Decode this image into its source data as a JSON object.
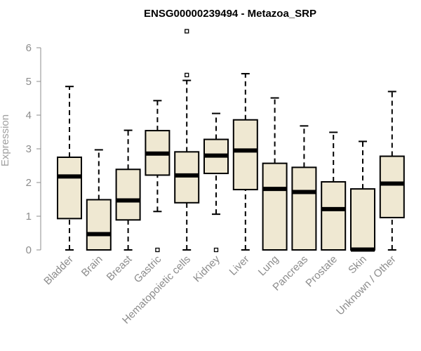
{
  "chart_data": {
    "type": "boxplot",
    "title": "ENSG00000239494 - Metazoa_SRP",
    "xlabel": "",
    "ylabel": "Expression",
    "ylim": [
      0,
      6
    ],
    "yticks": [
      0,
      1,
      2,
      3,
      4,
      5,
      6
    ],
    "colors": {
      "box_fill": "#efe8d2",
      "stroke": "#000000",
      "axis": "#8c8c8c"
    },
    "categories": [
      "Bladder",
      "Brain",
      "Breast",
      "Gastric",
      "Hematopoietic cells",
      "Kidney",
      "Liver",
      "Lung",
      "Pancreas",
      "Prostate",
      "Skin",
      "Unknown / Other"
    ],
    "boxes": [
      {
        "name": "Bladder",
        "whisker_low": 0,
        "q1": 0.93,
        "median": 2.18,
        "q3": 2.75,
        "whisker_high": 4.85,
        "outliers": []
      },
      {
        "name": "Brain",
        "whisker_low": 0,
        "q1": 0,
        "median": 0.47,
        "q3": 1.49,
        "whisker_high": 2.97,
        "outliers": []
      },
      {
        "name": "Breast",
        "whisker_low": 0,
        "q1": 0.89,
        "median": 1.47,
        "q3": 2.39,
        "whisker_high": 3.55,
        "outliers": []
      },
      {
        "name": "Gastric",
        "whisker_low": 1.14,
        "q1": 2.22,
        "median": 2.86,
        "q3": 3.54,
        "whisker_high": 4.43,
        "outliers": [
          0
        ]
      },
      {
        "name": "Hematopoietic cells",
        "whisker_low": 0,
        "q1": 1.4,
        "median": 2.21,
        "q3": 2.91,
        "whisker_high": 5.03,
        "outliers": [
          5.19,
          6.49
        ]
      },
      {
        "name": "Kidney",
        "whisker_low": 1.06,
        "q1": 2.27,
        "median": 2.8,
        "q3": 3.28,
        "whisker_high": 4.05,
        "outliers": [
          0
        ]
      },
      {
        "name": "Liver",
        "whisker_low": 0,
        "q1": 1.79,
        "median": 2.95,
        "q3": 3.86,
        "whisker_high": 5.23,
        "outliers": []
      },
      {
        "name": "Lung",
        "whisker_low": 0,
        "q1": 0,
        "median": 1.81,
        "q3": 2.57,
        "whisker_high": 4.51,
        "outliers": []
      },
      {
        "name": "Pancreas",
        "whisker_low": 0,
        "q1": 0,
        "median": 1.72,
        "q3": 2.45,
        "whisker_high": 3.68,
        "outliers": []
      },
      {
        "name": "Prostate",
        "whisker_low": 0,
        "q1": 0,
        "median": 1.21,
        "q3": 2.02,
        "whisker_high": 3.49,
        "outliers": []
      },
      {
        "name": "Skin",
        "whisker_low": 0,
        "q1": 0,
        "median": 0.01,
        "q3": 1.81,
        "whisker_high": 3.22,
        "outliers": []
      },
      {
        "name": "Unknown / Other",
        "whisker_low": 0,
        "q1": 0.96,
        "median": 1.97,
        "q3": 2.78,
        "whisker_high": 4.7,
        "outliers": []
      }
    ]
  }
}
